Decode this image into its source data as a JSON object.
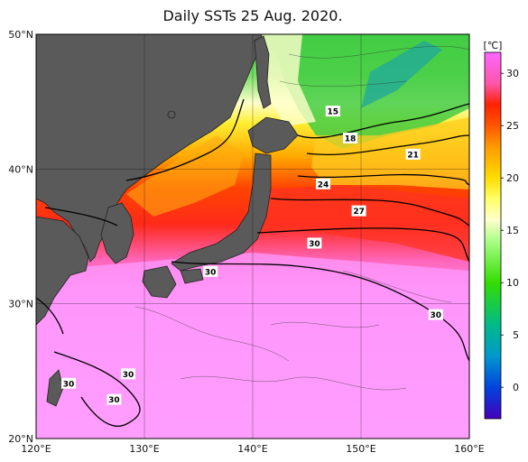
{
  "title": "Daily SSTs 25 Aug. 2020.",
  "map": {
    "lat_range": [
      20,
      50
    ],
    "lon_range": [
      120,
      160
    ],
    "lat_ticks": [
      {
        "lat": 50,
        "label": "50°N"
      },
      {
        "lat": 40,
        "label": "40°N"
      },
      {
        "lat": 30,
        "label": "30°N"
      },
      {
        "lat": 20,
        "label": "20°N"
      }
    ],
    "lon_ticks": [
      {
        "lon": 120,
        "label": "120°E"
      },
      {
        "lon": 130,
        "label": "130°E"
      },
      {
        "lon": 140,
        "label": "140°E"
      },
      {
        "lon": 150,
        "label": "150°E"
      },
      {
        "lon": 160,
        "label": "160°E"
      }
    ],
    "grid": true,
    "land_color": "#5a5a5a",
    "contour_labels": [
      {
        "text": "15",
        "lon": 147.4,
        "lat": 44.3
      },
      {
        "text": "18",
        "lon": 149.0,
        "lat": 42.3
      },
      {
        "text": "21",
        "lon": 154.8,
        "lat": 41.1
      },
      {
        "text": "24",
        "lon": 146.5,
        "lat": 38.9
      },
      {
        "text": "27",
        "lon": 149.8,
        "lat": 36.9
      },
      {
        "text": "30",
        "lon": 145.7,
        "lat": 34.5
      },
      {
        "text": "30",
        "lon": 136.1,
        "lat": 32.4
      },
      {
        "text": "30",
        "lon": 156.9,
        "lat": 29.2
      },
      {
        "text": "30",
        "lon": 128.5,
        "lat": 24.8
      },
      {
        "text": "30",
        "lon": 123.0,
        "lat": 24.1
      },
      {
        "text": "30",
        "lon": 127.2,
        "lat": 22.9
      }
    ]
  },
  "colorbar": {
    "unit": "[℃]",
    "min": -3,
    "max": 32,
    "ticks": [
      {
        "value": 30,
        "label": "30"
      },
      {
        "value": 25,
        "label": "25"
      },
      {
        "value": 20,
        "label": "20"
      },
      {
        "value": 15,
        "label": "15"
      },
      {
        "value": 10,
        "label": "10"
      },
      {
        "value": 5,
        "label": "5"
      },
      {
        "value": 0,
        "label": "0"
      }
    ],
    "stops": [
      {
        "value": 32,
        "color": "#ff66ff"
      },
      {
        "value": 29,
        "color": "#ff55aa"
      },
      {
        "value": 27,
        "color": "#ff2200"
      },
      {
        "value": 25,
        "color": "#ff5500"
      },
      {
        "value": 23,
        "color": "#ff9900"
      },
      {
        "value": 20,
        "color": "#ffdd00"
      },
      {
        "value": 18,
        "color": "#ffff66"
      },
      {
        "value": 16,
        "color": "#ffffcc"
      },
      {
        "value": 14,
        "color": "#aaff88"
      },
      {
        "value": 10,
        "color": "#33dd00"
      },
      {
        "value": 6,
        "color": "#00bb88"
      },
      {
        "value": 3,
        "color": "#0099cc"
      },
      {
        "value": 0,
        "color": "#0044dd"
      },
      {
        "value": -3,
        "color": "#4400bb"
      }
    ]
  }
}
